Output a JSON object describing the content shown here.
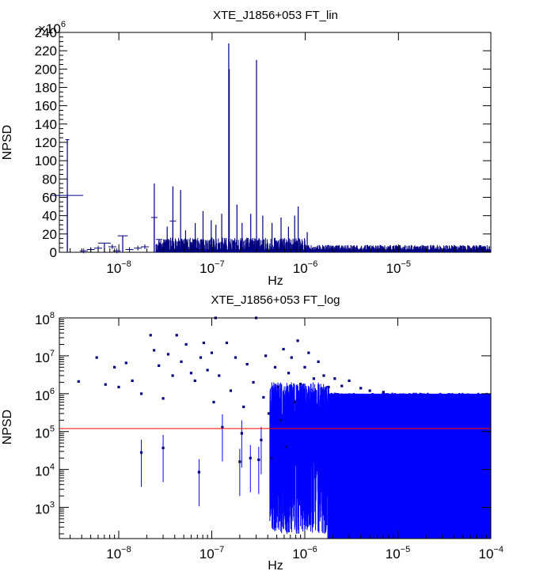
{
  "chart_data": [
    {
      "type": "bar",
      "title": "XTE_J1856+053 FT_lin",
      "xlabel": "Hz",
      "ylabel": "NPSD",
      "x_scale": "log",
      "xlim": [
        2.3e-09,
        9.8e-05
      ],
      "ylim": [
        0,
        240000000
      ],
      "y_multiplier_label": "×10",
      "y_multiplier_exp": "6",
      "y_ticks": [
        "0",
        "20",
        "40",
        "60",
        "80",
        "100",
        "120",
        "140",
        "160",
        "180",
        "200",
        "220",
        "240"
      ],
      "x_ticks": [
        {
          "base": "10",
          "exp": "−8",
          "value": 1e-08
        },
        {
          "base": "10",
          "exp": "−7",
          "value": 1e-07
        },
        {
          "base": "10",
          "exp": "−6",
          "value": 1e-06
        },
        {
          "base": "10",
          "exp": "−5",
          "value": 1e-05
        }
      ],
      "series_color": "#000080",
      "peaks": [
        {
          "x": 2.8e-09,
          "y": 123,
          "xerr": 0.3
        },
        {
          "x": 2.8e-09,
          "y": 62,
          "xerr": 2.5
        },
        {
          "x": 7e-09,
          "y": 10,
          "xerr": 1.0
        },
        {
          "x": 1.1e-08,
          "y": 18,
          "xerr": 0.8
        },
        {
          "x": 2.4e-08,
          "y": 75,
          "xerr": 0
        },
        {
          "x": 2.4e-08,
          "y": 38,
          "xerr": 0.5
        },
        {
          "x": 2.7e-08,
          "y": 14,
          "xerr": 0.5
        },
        {
          "x": 3.3e-08,
          "y": 28,
          "xerr": 0
        },
        {
          "x": 3.8e-08,
          "y": 72,
          "xerr": 0
        },
        {
          "x": 3.8e-08,
          "y": 34,
          "xerr": 0.5
        },
        {
          "x": 4.6e-08,
          "y": 68,
          "xerr": 0
        },
        {
          "x": 5.2e-08,
          "y": 24,
          "xerr": 0
        },
        {
          "x": 6.6e-08,
          "y": 32,
          "xerr": 0
        },
        {
          "x": 8e-08,
          "y": 45,
          "xerr": 0
        },
        {
          "x": 8e-08,
          "y": 16,
          "xerr": 0
        },
        {
          "x": 9.8e-08,
          "y": 35,
          "xerr": 0
        },
        {
          "x": 1.1e-07,
          "y": 30,
          "xerr": 0
        },
        {
          "x": 1.27e-07,
          "y": 42,
          "xerr": 0
        },
        {
          "x": 1.51e-07,
          "y": 228,
          "xerr": 0
        },
        {
          "x": 1.53e-07,
          "y": 200,
          "xerr": 0
        },
        {
          "x": 1.85e-07,
          "y": 52,
          "xerr": 0
        },
        {
          "x": 2.1e-07,
          "y": 32,
          "xerr": 0
        },
        {
          "x": 2.6e-07,
          "y": 42,
          "xerr": 0
        },
        {
          "x": 3e-07,
          "y": 210,
          "xerr": 0
        },
        {
          "x": 3.5e-07,
          "y": 40,
          "xerr": 0
        },
        {
          "x": 4.4e-07,
          "y": 32,
          "xerr": 0
        },
        {
          "x": 5.5e-07,
          "y": 38,
          "xerr": 0
        },
        {
          "x": 6.6e-07,
          "y": 28,
          "xerr": 0
        },
        {
          "x": 7.7e-07,
          "y": 40,
          "xerr": 0
        },
        {
          "x": 8.4e-07,
          "y": 50,
          "xerr": 0
        },
        {
          "x": 1.05e-06,
          "y": 22,
          "xerr": 0
        }
      ]
    },
    {
      "type": "scatter",
      "title": "XTE_J1856+053 FT_log",
      "xlabel": "Hz",
      "ylabel": "NPSD",
      "x_scale": "log",
      "y_scale": "log",
      "xlim": [
        2.3e-09,
        0.0001
      ],
      "ylim": [
        150,
        100000000
      ],
      "y_ticks": [
        {
          "base": "10",
          "exp": "3",
          "value": 1000
        },
        {
          "base": "10",
          "exp": "4",
          "value": 10000
        },
        {
          "base": "10",
          "exp": "5",
          "value": 100000
        },
        {
          "base": "10",
          "exp": "6",
          "value": 1000000
        },
        {
          "base": "10",
          "exp": "7",
          "value": 10000000
        },
        {
          "base": "10",
          "exp": "8",
          "value": 100000000
        }
      ],
      "x_ticks": [
        {
          "base": "10",
          "exp": "−8",
          "value": 1e-08
        },
        {
          "base": "10",
          "exp": "−7",
          "value": 1e-07
        },
        {
          "base": "10",
          "exp": "−6",
          "value": 1e-06
        },
        {
          "base": "10",
          "exp": "−5",
          "value": 1e-05
        },
        {
          "base": "10",
          "exp": "−4",
          "value": 0.0001
        }
      ],
      "series_color": "#0000ff",
      "reference_line": {
        "y": 120000,
        "color": "#ff0000"
      },
      "dense_band": {
        "x_start": 7e-07,
        "x_end": 0.0001,
        "y_low": 150,
        "y_high": 1000000
      },
      "points": [
        [
          3.7e-09,
          2100000
        ],
        [
          5.8e-09,
          9000000
        ],
        [
          7.2e-09,
          1750000
        ],
        [
          9e-09,
          5000000
        ],
        [
          1e-08,
          1500000
        ],
        [
          1.2e-08,
          6500000
        ],
        [
          1.4e-08,
          2200000
        ],
        [
          1.75e-08,
          28000
        ],
        [
          1.75e-08,
          1000000
        ],
        [
          2.2e-08,
          35000000
        ],
        [
          2.4e-08,
          14000000
        ],
        [
          2.7e-08,
          5500000
        ],
        [
          3e-08,
          37000
        ],
        [
          3e-08,
          750000
        ],
        [
          3.4e-08,
          11000000
        ],
        [
          3.8e-08,
          3000000
        ],
        [
          4.2e-08,
          35000000
        ],
        [
          4.7e-08,
          7000000
        ],
        [
          5.3e-08,
          20000000
        ],
        [
          6e-08,
          3500000
        ],
        [
          6.6e-08,
          2200000
        ],
        [
          7.3e-08,
          8500
        ],
        [
          7.6e-08,
          9000000
        ],
        [
          8.2e-08,
          22000000
        ],
        [
          9e-08,
          4200000
        ],
        [
          1e-07,
          12000000
        ],
        [
          1.05e-07,
          600000
        ],
        [
          1.1e-07,
          100000000
        ],
        [
          1.2e-07,
          3000000
        ],
        [
          1.3e-07,
          130000
        ],
        [
          1.45e-07,
          22000000
        ],
        [
          1.6e-07,
          1200000
        ],
        [
          1.8e-07,
          9000000
        ],
        [
          2e-07,
          16000
        ],
        [
          2.1e-07,
          90000
        ],
        [
          2.2e-07,
          450000
        ],
        [
          2.4e-07,
          6000000
        ],
        [
          2.6e-07,
          20000
        ],
        [
          2.8e-07,
          2000000
        ],
        [
          3e-07,
          100000000
        ],
        [
          3.2e-07,
          18000
        ],
        [
          3.4e-07,
          60000
        ],
        [
          3.6e-07,
          800000
        ],
        [
          3.8e-07,
          10000000
        ],
        [
          4.1e-07,
          300000
        ],
        [
          4.4e-07,
          20000
        ],
        [
          4.8e-07,
          5000000
        ],
        [
          5.2e-07,
          1500000
        ],
        [
          5.5e-07,
          200000
        ],
        [
          5.9e-07,
          15000000
        ],
        [
          6.3e-07,
          40000
        ],
        [
          6.7e-07,
          3500000
        ],
        [
          7.2e-07,
          9000000
        ],
        [
          7.8e-07,
          600000
        ],
        [
          8.4e-07,
          25000000
        ],
        [
          9e-07,
          1800000
        ],
        [
          1e-06,
          5000000
        ],
        [
          1.1e-06,
          12000000
        ],
        [
          1.25e-06,
          2500000
        ],
        [
          1.4e-06,
          7000000
        ],
        [
          1.6e-06,
          3000000
        ],
        [
          1.8e-06,
          1500000
        ],
        [
          2.1e-06,
          2500000
        ],
        [
          2.5e-06,
          1600000
        ],
        [
          3e-06,
          2200000
        ],
        [
          4e-06,
          1400000
        ],
        [
          5e-06,
          1200000
        ],
        [
          7e-06,
          1100000
        ]
      ]
    }
  ]
}
